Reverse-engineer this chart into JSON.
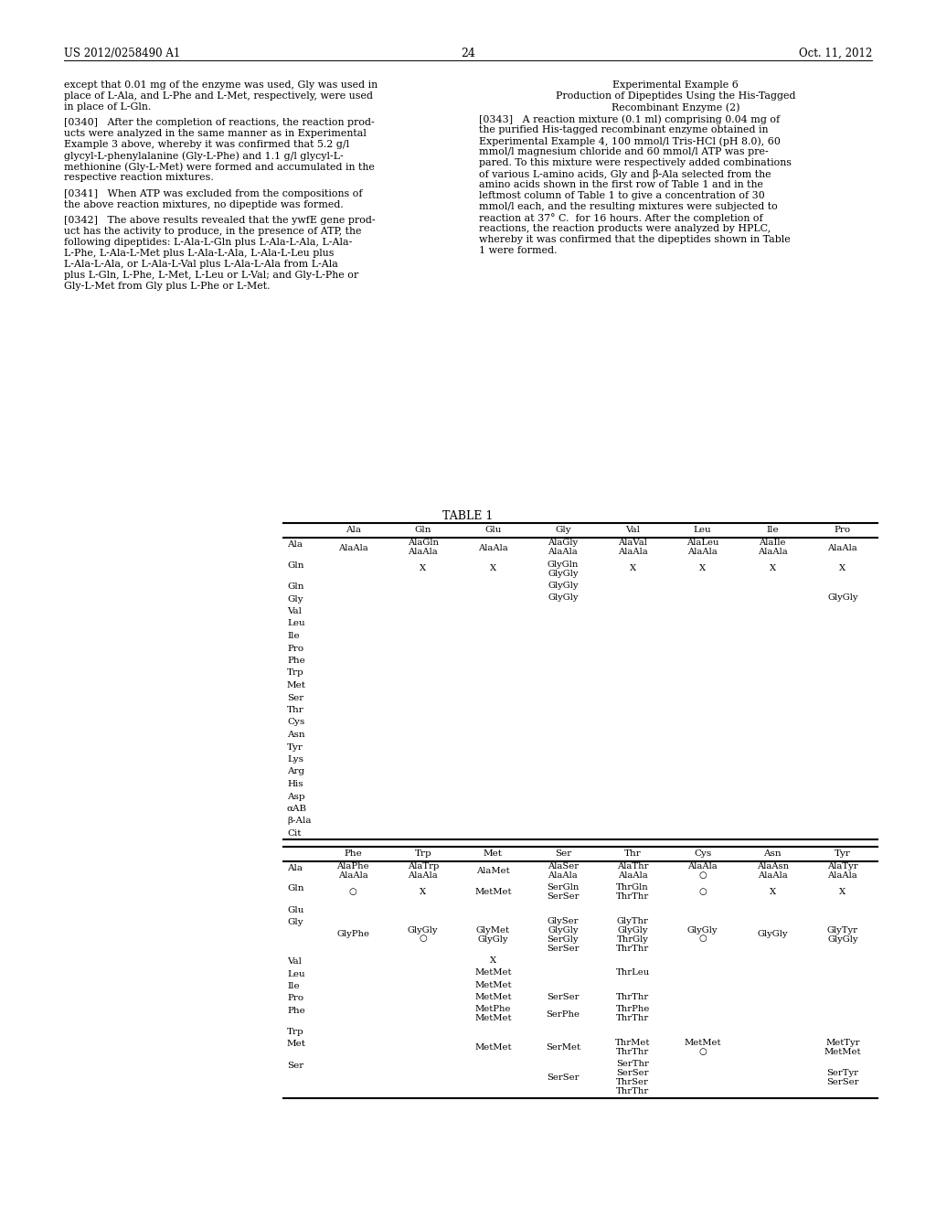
{
  "background_color": "#ffffff",
  "header_left": "US 2012/0258490 A1",
  "header_right": "Oct. 11, 2012",
  "page_number": "24",
  "left_column_lines": [
    "except that 0.01 mg of the enzyme was used, Gly was used in",
    "place of L-Ala, and L-Phe and L-Met, respectively, were used",
    "in place of L-Gln.",
    "",
    "[0340]   After the completion of reactions, the reaction prod-",
    "ucts were analyzed in the same manner as in Experimental",
    "Example 3 above, whereby it was confirmed that 5.2 g/l",
    "glycyl-L-phenylalanine (Gly-L-Phe) and 1.1 g/l glycyl-L-",
    "methionine (Gly-L-Met) were formed and accumulated in the",
    "respective reaction mixtures.",
    "",
    "[0341]   When ATP was excluded from the compositions of",
    "the above reaction mixtures, no dipeptide was formed.",
    "",
    "[0342]   The above results revealed that the ywfE gene prod-",
    "uct has the activity to produce, in the presence of ATP, the",
    "following dipeptides: L-Ala-L-Gln plus L-Ala-L-Ala, L-Ala-",
    "L-Phe, L-Ala-L-Met plus L-Ala-L-Ala, L-Ala-L-Leu plus",
    "L-Ala-L-Ala, or L-Ala-L-Val plus L-Ala-L-Ala from L-Ala",
    "plus L-Gln, L-Phe, L-Met, L-Leu or L-Val; and Gly-L-Phe or",
    "Gly-L-Met from Gly plus L-Phe or L-Met."
  ],
  "right_col_title1": "Experimental Example 6",
  "right_col_title2": "Production of Dipeptides Using the His-Tagged",
  "right_col_title3": "Recombinant Enzyme (2)",
  "right_column_lines": [
    "[0343]   A reaction mixture (0.1 ml) comprising 0.04 mg of",
    "the purified His-tagged recombinant enzyme obtained in",
    "Experimental Example 4, 100 mmol/l Tris-HCl (pH 8.0), 60",
    "mmol/l magnesium chloride and 60 mmol/l ATP was pre-",
    "pared. To this mixture were respectively added combinations",
    "of various L-amino acids, Gly and β-Ala selected from the",
    "amino acids shown in the first row of Table 1 and in the",
    "leftmost column of Table 1 to give a concentration of 30",
    "mmol/l each, and the resulting mixtures were subjected to",
    "reaction at 37° C.  for 16 hours. After the completion of",
    "reactions, the reaction products were analyzed by HPLC,",
    "whereby it was confirmed that the dipeptides shown in Table",
    "1 were formed."
  ],
  "table_title": "TABLE 1",
  "table1_col_headers": [
    "Ala",
    "Gln",
    "Glu",
    "Gly",
    "Val",
    "Leu",
    "Ile",
    "Pro"
  ],
  "table1_row_labels": [
    "Ala",
    "Gln",
    "Gln",
    "Gly",
    "Val",
    "Leu",
    "Ile",
    "Pro",
    "Phe",
    "Trp",
    "Met",
    "Ser",
    "Thr",
    "Cys",
    "Asn",
    "Tyr",
    "Lys",
    "Arg",
    "His",
    "Asp",
    "αAB",
    "β-Ala",
    "Cit"
  ],
  "table1_cells": {
    "0_0": "AlaAla",
    "0_1": "AlaGln\nAlaAla",
    "0_2": "AlaAla",
    "0_3": "AlaGly\nAlaAla",
    "0_4": "AlaVal\nAlaAla",
    "0_5": "AlaLeu\nAlaAla",
    "0_6": "AlaIle\nAlaAla",
    "0_7": "AlaAla",
    "1_1": "X",
    "1_2": "X",
    "1_3": "GlyGln\nGlyGly",
    "1_4": "X",
    "1_5": "X",
    "1_6": "X",
    "1_7": "X",
    "2_3": "GlyGly",
    "3_3": "GlyGly",
    "3_7": "GlyGly"
  },
  "table2_col_headers": [
    "Phe",
    "Trp",
    "Met",
    "Ser",
    "Thr",
    "Cys",
    "Asn",
    "Tyr"
  ],
  "table2_row_labels": [
    "Ala",
    "Gln",
    "Glu",
    "Gly",
    "Val",
    "Leu",
    "Ile",
    "Pro",
    "Phe",
    "Trp",
    "Met",
    "Ser"
  ],
  "table2_cells": {
    "0_0": "AlaPhe\nAlaAla",
    "0_1": "AlaTrp\nAlaAla",
    "0_2": "AlaMet",
    "0_3": "AlaSer\nAlaAla",
    "0_4": "AlaThr\nAlaAla",
    "0_5": "AlaAla\n○",
    "0_6": "AlaAsn\nAlaAla",
    "0_7": "AlaTyr\nAlaAla",
    "1_0": "○",
    "1_1": "X",
    "1_2": "MetMet",
    "1_3": "SerGln\nSerSer",
    "1_4": "ThrGln\nThrThr",
    "1_5": "○",
    "1_6": "X",
    "1_7": "X",
    "3_0": "GlyPhe",
    "3_1": "GlyGly\n○",
    "3_2": "GlyMet\nGlyGly",
    "3_3": "GlySer\nGlyGly\nSerGly\nSerSer",
    "3_4": "GlyThr\nGlyGly\nThrGly\nThrThr",
    "3_5": "GlyGly\n○",
    "3_6": "GlyGly",
    "3_7": "GlyTyr\nGlyGly",
    "4_2": "X",
    "5_2": "MetMet",
    "5_4": "ThrLeu",
    "6_2": "MetMet",
    "7_2": "MetMet",
    "7_3": "SerSer",
    "7_4": "ThrThr",
    "8_2": "MetPhe\nMetMet",
    "8_3": "SerPhe",
    "8_4": "ThrPhe\nThrThr",
    "10_2": "MetMet",
    "10_3": "SerMet",
    "10_4": "ThrMet\nThrThr",
    "10_5": "MetMet\n○",
    "10_7": "MetTyr\nMetMet",
    "11_3": "SerSer",
    "11_4": "SerThr\nSerSer\nThrSer\nThrThr",
    "11_7": "SerTyr\nSerSer"
  }
}
